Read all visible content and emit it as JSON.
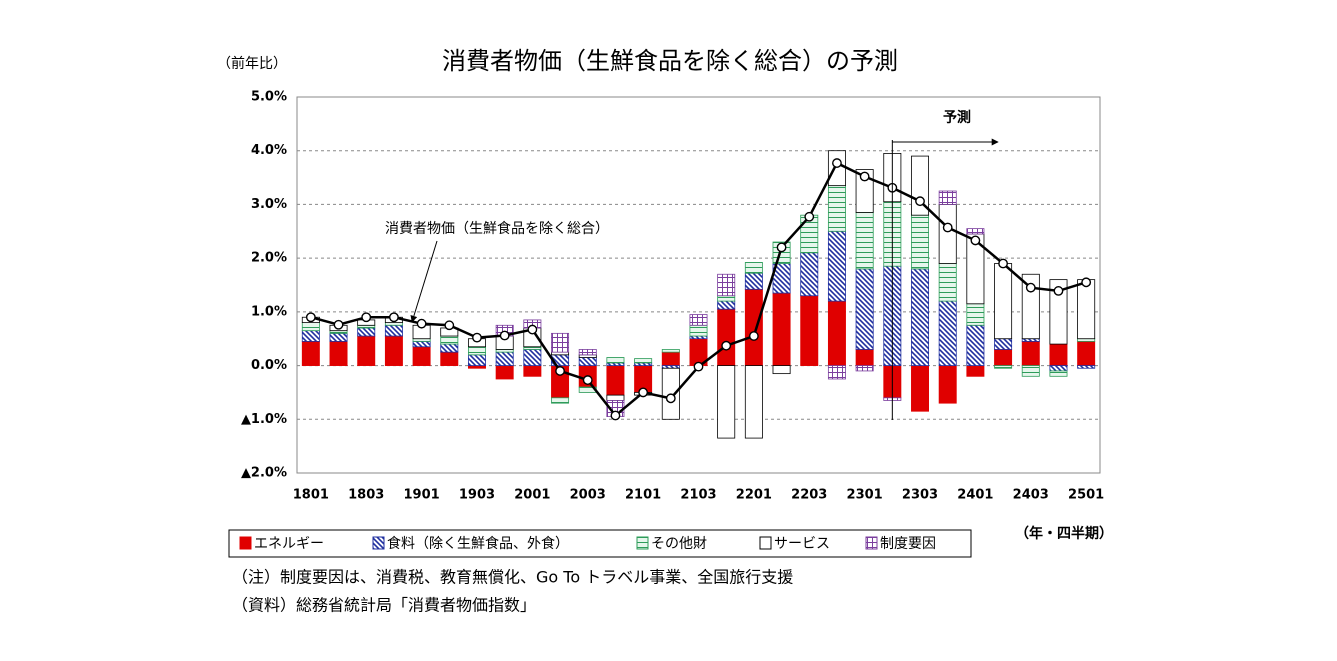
{
  "chart_data": {
    "type": "stacked-bar-line",
    "title": "消費者物価（生鮮食品を除く総合）の予測",
    "y_label": "（前年比）",
    "x_label": "（年・四半期）",
    "forecast_label": "予測",
    "categories": [
      "1801",
      null,
      "1803",
      null,
      "1901",
      null,
      "1903",
      null,
      "2001",
      null,
      "2003",
      null,
      "2101",
      null,
      "2103",
      null,
      "2201",
      null,
      "2203",
      null,
      "2301",
      null,
      "2303",
      null,
      "2401",
      null,
      "2403",
      null,
      "2501"
    ],
    "series": [
      {
        "name": "エネルギー",
        "color": "#e00000",
        "values": [
          0.45,
          0.45,
          0.55,
          0.55,
          0.35,
          0.25,
          -0.05,
          -0.25,
          -0.2,
          -0.6,
          -0.4,
          -0.55,
          -0.5,
          0.25,
          0.5,
          1.05,
          1.42,
          1.35,
          1.3,
          1.2,
          0.3,
          -0.6,
          -0.85,
          -0.7,
          -0.2,
          0.3,
          0.45,
          0.4,
          0.45
        ]
      },
      {
        "name": "食料（除く生鮮食品、外食）",
        "color": "#1f2f9f",
        "values": [
          0.2,
          0.15,
          0.15,
          0.2,
          0.1,
          0.15,
          0.2,
          0.25,
          0.3,
          0.2,
          0.15,
          0.05,
          0.05,
          -0.05,
          0.05,
          0.15,
          0.3,
          0.55,
          0.8,
          1.3,
          1.5,
          1.85,
          1.8,
          1.2,
          0.75,
          0.2,
          0.05,
          -0.1,
          -0.05
        ]
      },
      {
        "name": "その他財",
        "color": "#2e9c5a",
        "values": [
          0.15,
          0.05,
          0.05,
          0.05,
          0.05,
          0.15,
          0.15,
          0.05,
          0.05,
          -0.1,
          -0.1,
          0.1,
          0.08,
          0.05,
          0.2,
          0.1,
          0.2,
          0.4,
          0.7,
          0.85,
          1.05,
          1.2,
          1.0,
          0.7,
          0.4,
          -0.05,
          -0.2,
          -0.1,
          0.05
        ]
      },
      {
        "name": "サービス",
        "color": "#ffffff",
        "values": [
          0.1,
          0.1,
          0.1,
          0.1,
          0.25,
          0.15,
          0.15,
          0.25,
          0.35,
          0.05,
          0.05,
          -0.1,
          -0.05,
          -0.95,
          0.0,
          -1.35,
          -1.35,
          -0.15,
          0.0,
          0.65,
          0.8,
          0.9,
          1.1,
          1.1,
          1.3,
          1.4,
          1.2,
          1.2,
          1.1
        ]
      },
      {
        "name": "制度要因",
        "color": "#7b3f9e",
        "values": [
          0,
          0,
          0,
          0,
          0,
          0,
          0,
          0.2,
          0.15,
          0.35,
          0.1,
          -0.3,
          0,
          0,
          0.2,
          0.4,
          0,
          0,
          0,
          -0.25,
          -0.1,
          -0.05,
          0,
          0.25,
          0.1,
          0,
          0,
          0,
          0
        ]
      }
    ],
    "line": {
      "name": "消費者物価（生鮮食品を除く総合）",
      "color": "#000000",
      "values": [
        0.9,
        0.76,
        0.9,
        0.9,
        0.78,
        0.75,
        0.52,
        0.56,
        0.67,
        -0.1,
        -0.27,
        -0.93,
        -0.5,
        -0.61,
        -0.02,
        0.37,
        0.55,
        2.2,
        2.77,
        3.77,
        3.52,
        3.31,
        3.06,
        2.57,
        2.33,
        1.9,
        1.45,
        1.39,
        1.55
      ]
    },
    "ylim": [
      -2,
      5
    ],
    "yticks": [
      {
        "value": -2,
        "label": "▲2.0%"
      },
      {
        "value": -1,
        "label": "▲1.0%"
      },
      {
        "value": 0,
        "label": "0.0%"
      },
      {
        "value": 1,
        "label": "1.0%"
      },
      {
        "value": 2,
        "label": "2.0%"
      },
      {
        "value": 3,
        "label": "3.0%"
      },
      {
        "value": 4,
        "label": "4.0%"
      },
      {
        "value": 5,
        "label": "5.0%"
      }
    ],
    "grid": true
  },
  "notes": [
    "（注）制度要因は、消費税、教育無償化、Go To トラベル事業、全国旅行支援",
    "（資料）総務省統計局「消費者物価指数」"
  ]
}
